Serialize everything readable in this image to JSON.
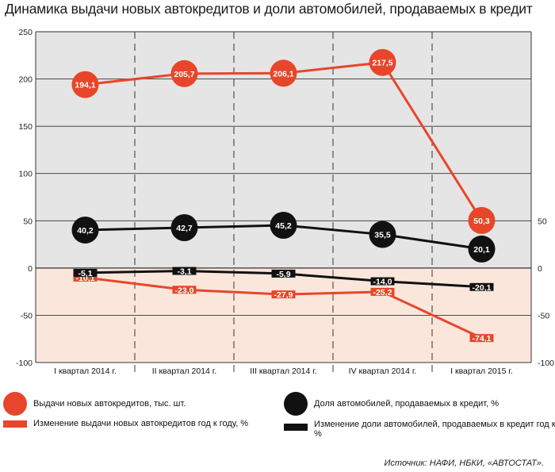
{
  "title": "Динамика выдачи новых автокредитов и доли автомобилей, продаваемых в кредит",
  "colors": {
    "red": "#e8462a",
    "black": "#111111",
    "top_bg": "#e5e5e5",
    "bottom_bg": "#fbe6dc"
  },
  "chart_data": [
    {
      "type": "line",
      "categories": [
        "I квартал 2014 г.",
        "II квартал 2014 г.",
        "III квартал 2014 г.",
        "IV квартал 2014 г.",
        "I квартал 2015 г."
      ],
      "left_axis": {
        "ylim": [
          -100,
          250
        ],
        "ticks": [
          "250",
          "200",
          "150",
          "100",
          "50",
          "0",
          "-50",
          "-100"
        ],
        "tick_values": [
          250,
          200,
          150,
          100,
          50,
          0,
          -50,
          -100
        ]
      },
      "right_axis": {
        "ticks": [
          "50",
          "0",
          "-50",
          "-100"
        ],
        "tick_values": [
          50,
          0,
          -50,
          -100
        ]
      },
      "series": [
        {
          "name": "Выдачи новых автокредитов, тыс. шт.",
          "style": "circle-red",
          "values": [
            194.1,
            205.7,
            206.1,
            217.5,
            50.3
          ],
          "labels": [
            "194,1",
            "205,7",
            "206,1",
            "217,5",
            "50,3"
          ]
        },
        {
          "name": "Доля автомобилей, продаваемых в кредит, %",
          "style": "circle-black",
          "values": [
            40.2,
            42.7,
            45.2,
            35.5,
            20.1
          ],
          "labels": [
            "40,2",
            "42,7",
            "45,2",
            "35,5",
            "20,1"
          ]
        },
        {
          "name": "Изменение выдачи новых автокредитов год к году, %",
          "style": "bar-red",
          "values": [
            -10.1,
            -23.0,
            -27.9,
            -25.2,
            -74.1
          ],
          "labels": [
            "-10,1",
            "-23,0",
            "-27,9",
            "-25,2",
            "-74,1"
          ]
        },
        {
          "name": "Изменение доли автомобилей, продаваемых в кредит год к году, %",
          "style": "bar-black",
          "values": [
            -5.1,
            -3.1,
            -5.9,
            -14.0,
            -20.1
          ],
          "labels": [
            "-5,1",
            "-3,1",
            "-5,9",
            "-14,0",
            "-20,1"
          ]
        }
      ]
    }
  ],
  "legend": {
    "red_circle": "Выдачи новых автокредитов, тыс. шт.",
    "red_bar": "Изменение выдачи новых автокредитов год к году, %",
    "black_circle": "Доля автомобилей, продаваемых в кредит, %",
    "black_bar_line1": "Изменение доли автомобилей, продаваемых в кредит год к году,",
    "black_bar_line2": "%"
  },
  "source": {
    "label": "Источник:",
    "text": "НАФИ, НБКИ, «АВТОСТАТ»."
  }
}
